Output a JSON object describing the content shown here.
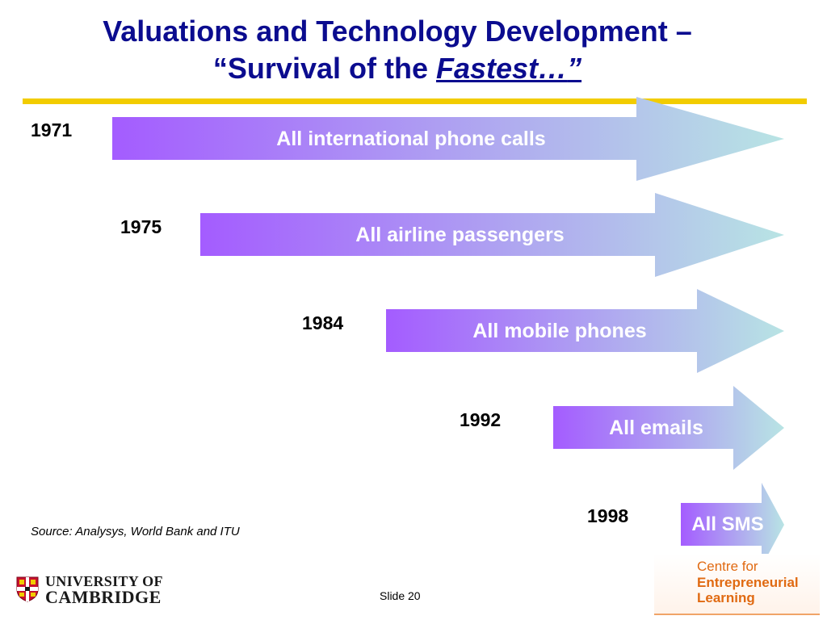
{
  "slide": {
    "title_line1": "Valuations and Technology Development –",
    "title_line2_prefix": "“Survival of the ",
    "title_line2_emphasis": "Fastest…",
    "title_line2_suffix": "”",
    "source": "Source: Analysys, World Bank and ITU",
    "slide_number": "Slide 20"
  },
  "timeline": [
    {
      "year": "1971",
      "label": "All international phone calls"
    },
    {
      "year": "1975",
      "label": "All airline passengers"
    },
    {
      "year": "1984",
      "label": "All mobile phones"
    },
    {
      "year": "1992",
      "label": "All emails"
    },
    {
      "year": "1998",
      "label": "All SMS"
    }
  ],
  "logos": {
    "university_line1": "UNIVERSITY OF",
    "university_line2": "CAMBRIDGE",
    "centre_line1": "Centre for",
    "centre_line2": "Entrepreneurial",
    "centre_line3": "Learning"
  },
  "colors": {
    "title": "#0b0c8f",
    "rule": "#f2cc00",
    "arrow_start": "#a45cff",
    "arrow_end": "#b8e4e4",
    "centre_logo": "#e06a12"
  }
}
